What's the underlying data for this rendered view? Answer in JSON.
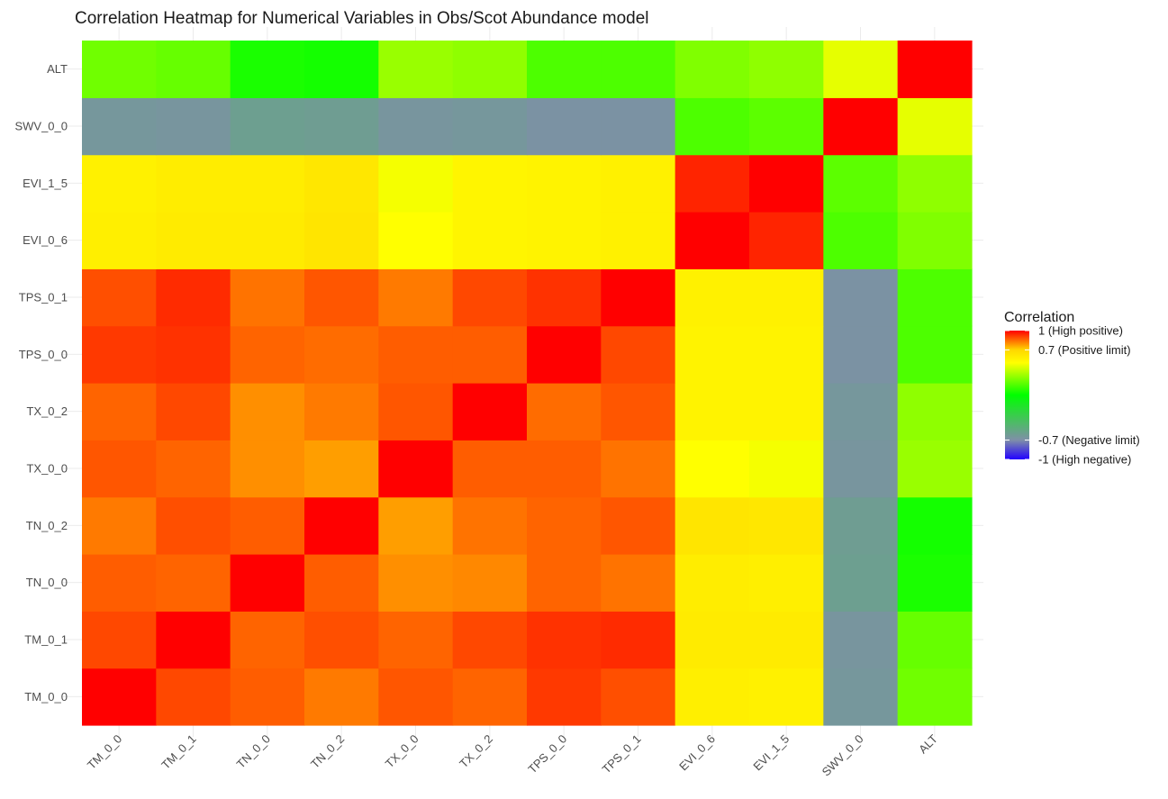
{
  "chart_data": {
    "type": "heatmap",
    "title": "Correlation Heatmap for Numerical Variables in Obs/Scot Abundance model",
    "xlabel": "",
    "ylabel": "",
    "x_categories": [
      "TM_0_0",
      "TM_0_1",
      "TN_0_0",
      "TN_0_2",
      "TX_0_0",
      "TX_0_2",
      "TPS_0_0",
      "TPS_0_1",
      "EVI_0_6",
      "EVI_1_5",
      "SWV_0_0",
      "ALT"
    ],
    "y_categories_bottom_to_top": [
      "TM_0_0",
      "TM_0_1",
      "TN_0_0",
      "TN_0_2",
      "TX_0_0",
      "TX_0_2",
      "TPS_0_0",
      "TPS_0_1",
      "EVI_0_6",
      "EVI_1_5",
      "SWV_0_0",
      "ALT"
    ],
    "values": [
      [
        1.0,
        0.9,
        0.87,
        0.83,
        0.88,
        0.86,
        0.92,
        0.89,
        0.58,
        0.57,
        -0.65,
        0.22
      ],
      [
        0.9,
        1.0,
        0.86,
        0.89,
        0.86,
        0.9,
        0.93,
        0.94,
        0.6,
        0.6,
        -0.66,
        0.2
      ],
      [
        0.87,
        0.86,
        1.0,
        0.87,
        0.8,
        0.81,
        0.86,
        0.84,
        0.59,
        0.58,
        -0.6,
        0.05
      ],
      [
        0.83,
        0.89,
        0.87,
        1.0,
        0.78,
        0.84,
        0.86,
        0.88,
        0.63,
        0.62,
        -0.61,
        0.04
      ],
      [
        0.88,
        0.86,
        0.8,
        0.78,
        1.0,
        0.87,
        0.87,
        0.84,
        0.5,
        0.48,
        -0.66,
        0.3
      ],
      [
        0.86,
        0.9,
        0.8,
        0.83,
        0.88,
        1.0,
        0.85,
        0.88,
        0.56,
        0.56,
        -0.65,
        0.28
      ],
      [
        0.92,
        0.93,
        0.86,
        0.85,
        0.87,
        0.87,
        1.0,
        0.9,
        0.56,
        0.56,
        -0.68,
        0.15
      ],
      [
        0.89,
        0.94,
        0.84,
        0.88,
        0.83,
        0.9,
        0.93,
        1.0,
        0.57,
        0.57,
        -0.68,
        0.15
      ],
      [
        0.58,
        0.6,
        0.6,
        0.63,
        0.5,
        0.55,
        0.56,
        0.57,
        1.0,
        0.95,
        0.15,
        0.25
      ],
      [
        0.57,
        0.59,
        0.59,
        0.62,
        0.48,
        0.55,
        0.56,
        0.57,
        0.95,
        1.0,
        0.18,
        0.28
      ],
      [
        -0.65,
        -0.66,
        -0.6,
        -0.61,
        -0.66,
        -0.65,
        -0.68,
        -0.68,
        0.15,
        0.18,
        1.0,
        0.45
      ],
      [
        0.22,
        0.2,
        0.05,
        0.04,
        0.3,
        0.28,
        0.15,
        0.15,
        0.25,
        0.28,
        0.45,
        1.0
      ]
    ],
    "color_scale": {
      "stops": [
        {
          "value": -1.0,
          "color": "#2200ff"
        },
        {
          "value": -0.7,
          "color": "#7f8fa8"
        },
        {
          "value": 0.0,
          "color": "#00ff00"
        },
        {
          "value": 0.5,
          "color": "#ffff00"
        },
        {
          "value": 0.7,
          "color": "#ffd700"
        },
        {
          "value": 1.0,
          "color": "#ff0000"
        }
      ]
    },
    "legend": {
      "title": "Correlation",
      "position": "right",
      "labels": [
        {
          "value": 1.0,
          "text": "1 (High positive)"
        },
        {
          "value": 0.7,
          "text": "0.7 (Positive limit)"
        },
        {
          "value": -0.7,
          "text": "-0.7 (Negative limit)"
        },
        {
          "value": -1.0,
          "text": "-1 (High negative)"
        }
      ]
    },
    "grid": true
  }
}
